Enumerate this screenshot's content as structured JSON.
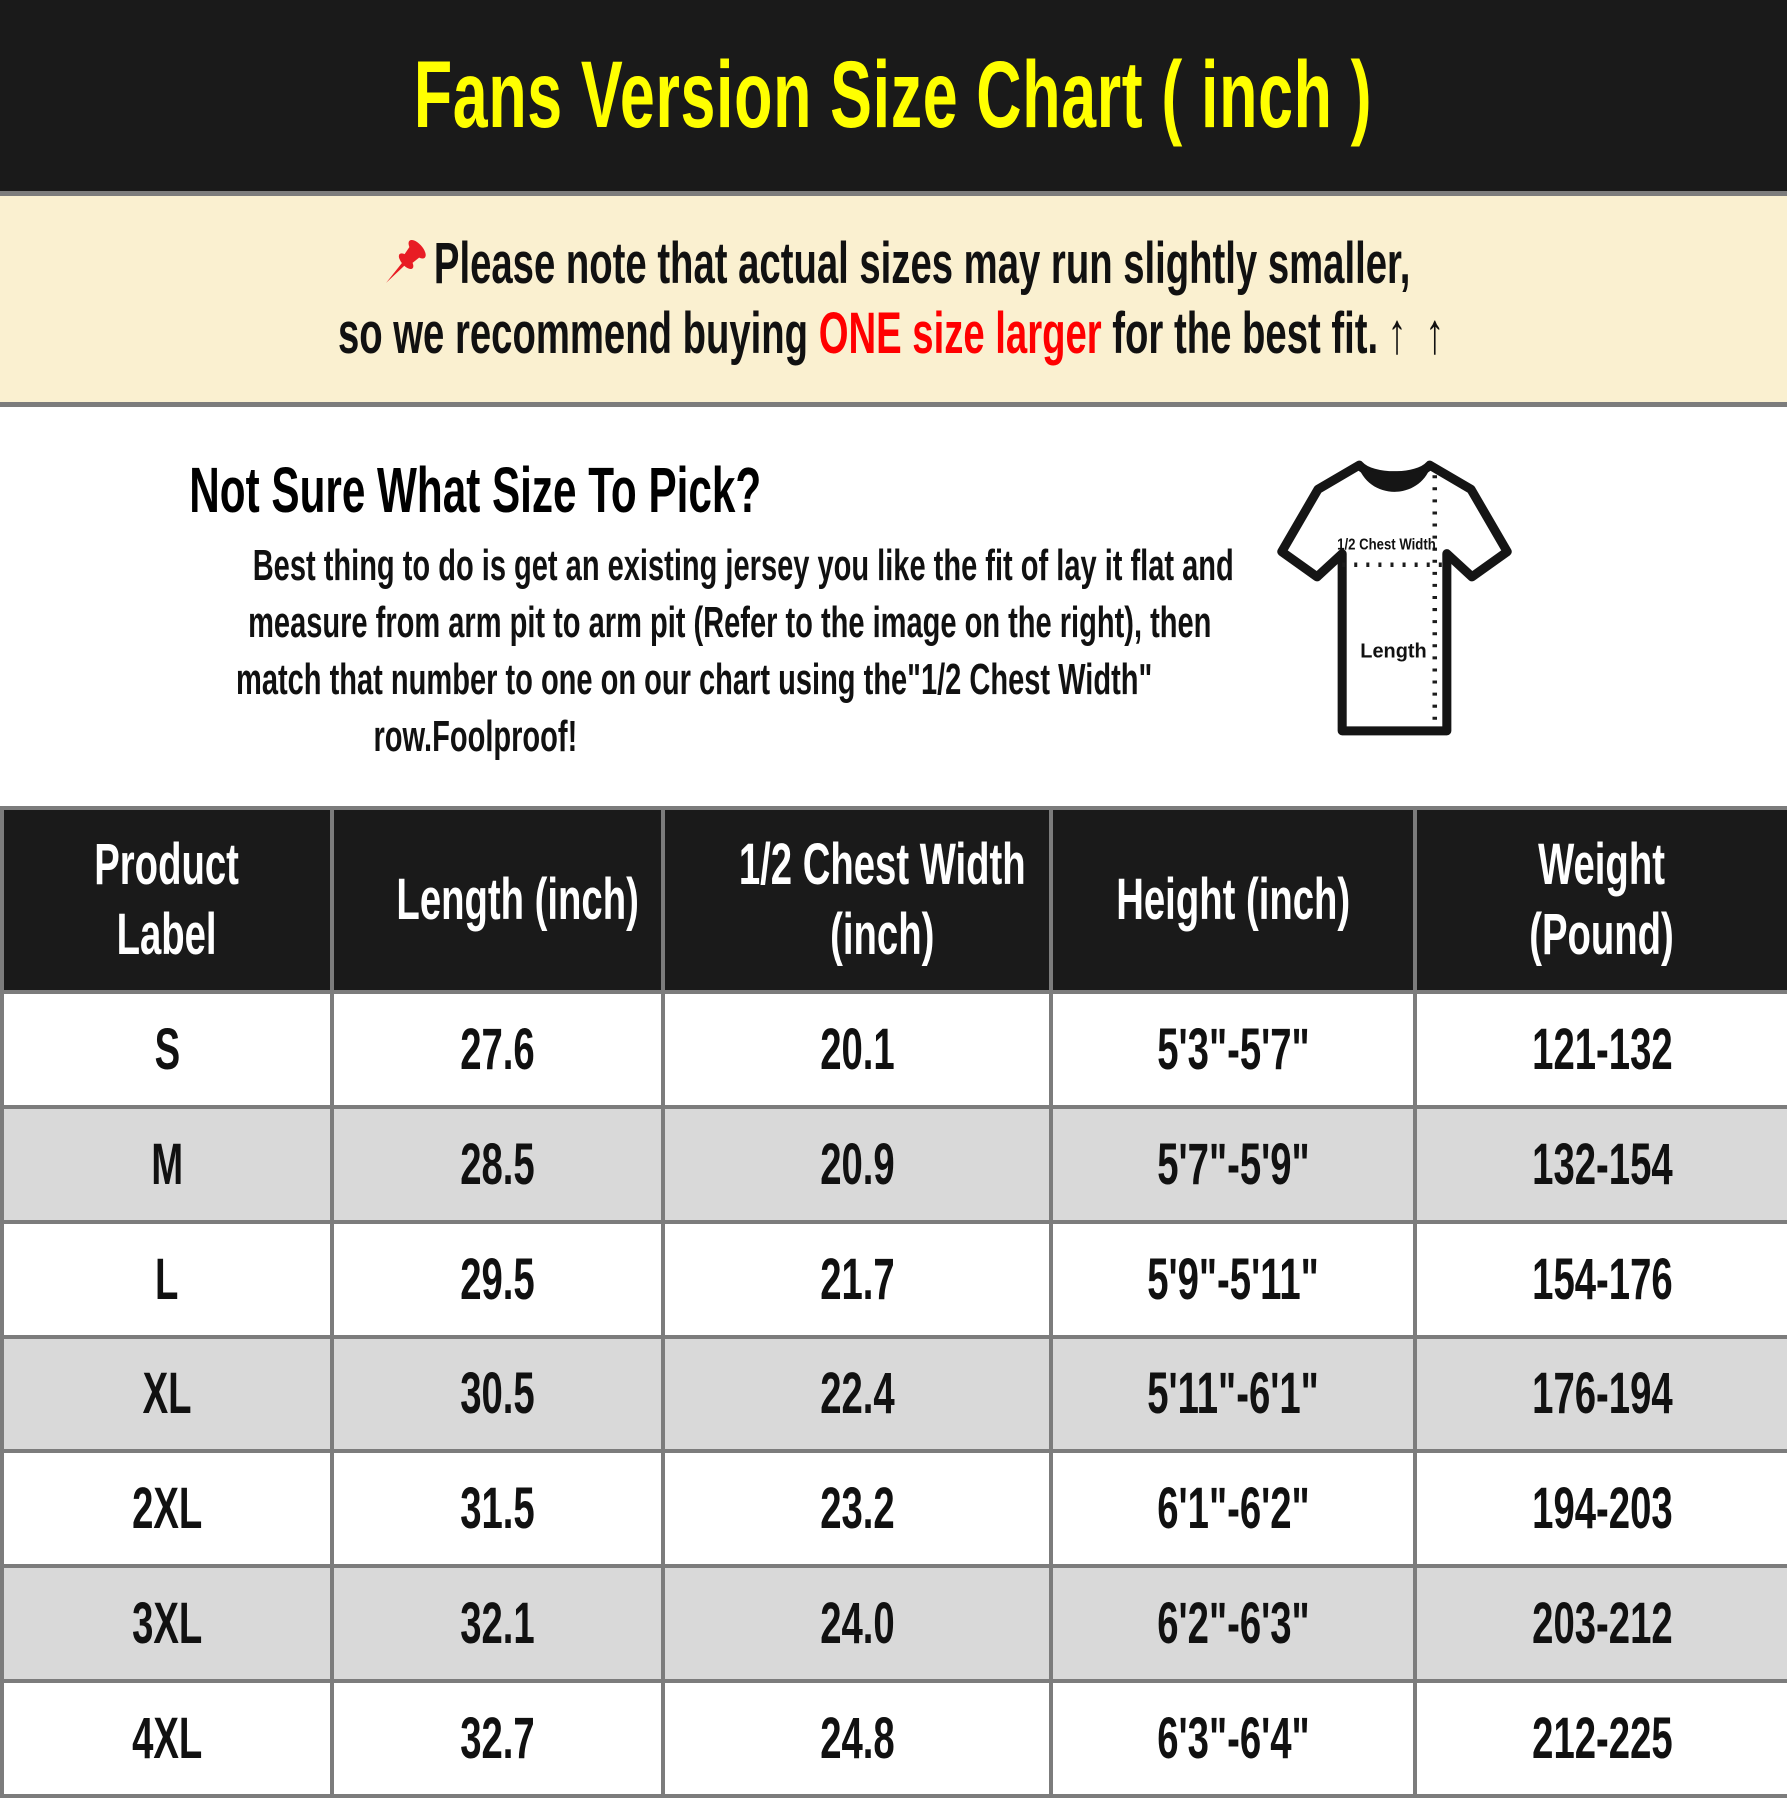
{
  "title": "Fans Version Size Chart ( inch )",
  "note": {
    "line1": "Please note that actual sizes may run slightly smaller,",
    "line2_pre": "so we recommend buying ",
    "line2_highlight": "ONE size larger",
    "line2_post": " for the best fit.",
    "arrows": "↑ ↑",
    "bg_color": "#faf0d0",
    "highlight_color": "#ff0000",
    "pin_color": "#e81c24"
  },
  "guide": {
    "heading": "Not Sure What Size To Pick?",
    "lines": [
      "Best thing to do is get an existing jersey you like the fit of lay it flat and",
      "measure from arm pit to arm pit (Refer to the image on the right), then",
      "match that number to one on our chart using the\"1/2 Chest Width\"",
      "row.Foolproof!"
    ],
    "diagram": {
      "chest_label": "1/2 Chest Width",
      "length_label": "Length"
    }
  },
  "chart_data": {
    "type": "table",
    "title": "Fans Version Size Chart ( inch )",
    "columns": [
      "Product Label",
      "Length (inch)",
      "1/2 Chest Width (inch)",
      "Height (inch)",
      "Weight (Pound)"
    ],
    "column_lines": [
      [
        "Product",
        "Label"
      ],
      [
        "Length (inch)"
      ],
      [
        "1/2 Chest Width",
        "(inch)"
      ],
      [
        "Height (inch)"
      ],
      [
        "Weight",
        "(Pound)"
      ]
    ],
    "rows": [
      [
        "S",
        "27.6",
        "20.1",
        "5'3\"-5'7\"",
        "121-132"
      ],
      [
        "M",
        "28.5",
        "20.9",
        "5'7\"-5'9\"",
        "132-154"
      ],
      [
        "L",
        "29.5",
        "21.7",
        "5'9\"-5'11\"",
        "154-176"
      ],
      [
        "XL",
        "30.5",
        "22.4",
        "5'11\"-6'1\"",
        "176-194"
      ],
      [
        "2XL",
        "31.5",
        "23.2",
        "6'1\"-6'2\"",
        "194-203"
      ],
      [
        "3XL",
        "32.1",
        "24.0",
        "6'2\"-6'3\"",
        "203-212"
      ],
      [
        "4XL",
        "32.7",
        "24.8",
        "6'3\"-6'4\"",
        "212-225"
      ]
    ]
  },
  "colors": {
    "title_bg": "#1a1a1a",
    "title_text": "#ffff00",
    "divider": "#7c7c7c",
    "header_bg": "#1a1a1a",
    "header_text": "#ffffff",
    "row_alt_bg": "#d9d9d9",
    "body_text": "#111111"
  }
}
